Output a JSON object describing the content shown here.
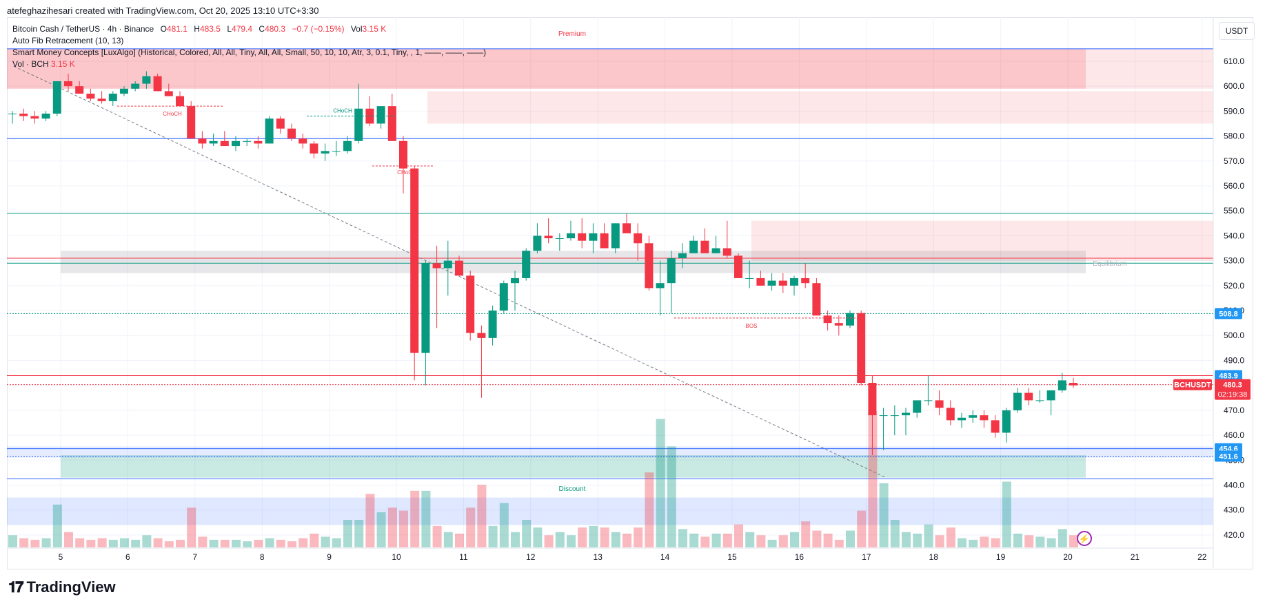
{
  "header": {
    "attribution": "atefeghazihesari created with TradingView.com, Oct 20, 2025 13:10 UTC+3:30"
  },
  "legend": {
    "symbol": "Bitcoin Cash / TetherUS · 4h · Binance",
    "o_label": "O",
    "o_value": "481.1",
    "h_label": "H",
    "h_value": "483.5",
    "l_label": "L",
    "l_value": "479.4",
    "c_label": "C",
    "c_value": "480.3",
    "change": "−0.7 (−0.15%)",
    "vol_label": "Vol",
    "vol_value": "3.15 K",
    "indicator1": "Auto Fib Retracement (10, 13)",
    "indicator2": "Smart Money Concepts [LuxAlgo] (Historical, Colored, All, All, Tiny, All, All, Small, 50, 10, 10, Atr, 3, 0.1, Tiny, , 1, ——, ——, ——)",
    "indicator3_label": "Vol · BCH",
    "indicator3_value": "3.15 K"
  },
  "currency_button": "USDT",
  "price_labels": {
    "fib_top": "508.8",
    "high_line": "483.9",
    "ticker": "BCHUSDT",
    "last_price": "480.3",
    "countdown": "02:19:38",
    "low1": "454.6",
    "low2": "451.6"
  },
  "zone_labels": {
    "premium": "Premium",
    "discount": "Discount",
    "equilibrium": "Equilibrium",
    "choch1": "CHoCH",
    "choch2": "CHoCH",
    "choch3": "CHoCH",
    "bos": "BOS"
  },
  "footer": {
    "brand": "TradingView"
  },
  "colors": {
    "up": "#089981",
    "down": "#f23645",
    "blue": "#2962ff",
    "accent_label": "#2196f3"
  },
  "chart_data": {
    "type": "candlestick",
    "timeframe": "4h",
    "ylim": [
      415,
      618
    ],
    "y_ticks": [
      420,
      430,
      440,
      450,
      460,
      470,
      480,
      490,
      500,
      510,
      520,
      530,
      540,
      550,
      560,
      570,
      580,
      590,
      600,
      610
    ],
    "y_tick_labels": [
      "420.0",
      "430.0",
      "440.0",
      "450.0",
      "460.0",
      "470.0",
      "480.0",
      "490.0",
      "500.0",
      "510.0",
      "520.0",
      "530.0",
      "540.0",
      "550.0",
      "560.0",
      "570.0",
      "580.0",
      "590.0",
      "600.0",
      "610.0"
    ],
    "x_tick_labels": [
      "5",
      "6",
      "7",
      "8",
      "9",
      "10",
      "11",
      "12",
      "13",
      "14",
      "15",
      "16",
      "17",
      "18",
      "19",
      "20",
      "21",
      "22"
    ],
    "candles": [
      [
        589,
        590,
        585,
        589,
        0.8
      ],
      [
        589,
        591,
        586,
        588,
        0.6
      ],
      [
        588,
        590,
        585,
        587,
        0.5
      ],
      [
        587,
        590,
        586,
        589,
        0.6
      ],
      [
        589,
        602,
        588,
        602,
        2.8
      ],
      [
        602,
        605,
        598,
        600,
        1.0
      ],
      [
        600,
        602,
        597,
        597,
        0.6
      ],
      [
        597,
        599,
        594,
        595,
        0.5
      ],
      [
        595,
        598,
        593,
        594,
        0.6
      ],
      [
        594,
        598,
        592,
        597,
        0.5
      ],
      [
        597,
        600,
        596,
        599,
        0.6
      ],
      [
        599,
        602,
        598,
        601,
        0.5
      ],
      [
        601,
        606,
        599,
        604,
        0.8
      ],
      [
        604,
        605,
        598,
        598,
        0.6
      ],
      [
        598,
        601,
        596,
        596,
        0.4
      ],
      [
        596,
        598,
        592,
        592,
        0.5
      ],
      [
        592,
        594,
        580,
        579,
        2.6
      ],
      [
        579,
        582,
        575,
        577,
        0.7
      ],
      [
        577,
        581,
        576,
        578,
        0.5
      ],
      [
        578,
        582,
        576,
        576,
        0.5
      ],
      [
        576,
        580,
        574,
        578,
        0.5
      ],
      [
        578,
        579,
        576,
        578,
        0.4
      ],
      [
        578,
        580,
        575,
        577,
        0.5
      ],
      [
        577,
        588,
        577,
        587,
        0.6
      ],
      [
        587,
        588,
        581,
        583,
        0.5
      ],
      [
        583,
        585,
        578,
        579,
        0.4
      ],
      [
        579,
        581,
        575,
        577,
        0.6
      ],
      [
        577,
        578,
        571,
        573,
        0.9
      ],
      [
        573,
        577,
        570,
        574,
        0.7
      ],
      [
        574,
        578,
        572,
        574,
        0.6
      ],
      [
        574,
        580,
        573,
        578,
        1.8
      ],
      [
        578,
        601,
        577,
        591,
        1.8
      ],
      [
        591,
        596,
        584,
        585,
        3.5
      ],
      [
        585,
        592,
        583,
        592,
        2.3
      ],
      [
        592,
        597,
        579,
        578,
        2.6
      ],
      [
        578,
        580,
        557,
        567,
        2.4
      ],
      [
        567,
        568,
        482,
        493,
        3.7
      ],
      [
        493,
        530,
        480,
        529,
        3.7
      ],
      [
        529,
        536,
        503,
        527,
        1.4
      ],
      [
        527,
        538,
        516,
        530,
        1.0
      ],
      [
        530,
        532,
        525,
        524,
        0.9
      ],
      [
        524,
        526,
        498,
        501,
        2.6
      ],
      [
        501,
        504,
        475,
        499,
        4.1
      ],
      [
        499,
        512,
        496,
        510,
        1.4
      ],
      [
        510,
        522,
        509,
        521,
        2.9
      ],
      [
        521,
        526,
        510,
        523,
        1.0
      ],
      [
        523,
        535,
        522,
        534,
        1.8
      ],
      [
        534,
        545,
        533,
        540,
        1.3
      ],
      [
        540,
        547,
        537,
        539,
        0.8
      ],
      [
        539,
        541,
        534,
        539,
        1.0
      ],
      [
        539,
        546,
        538,
        541,
        0.8
      ],
      [
        541,
        547,
        535,
        538,
        1.3
      ],
      [
        538,
        545,
        533,
        541,
        1.4
      ],
      [
        541,
        545,
        537,
        535,
        1.3
      ],
      [
        535,
        545,
        533,
        545,
        1.0
      ],
      [
        545,
        549,
        542,
        541,
        0.9
      ],
      [
        541,
        545,
        530,
        537,
        1.3
      ],
      [
        537,
        540,
        518,
        519,
        4.9
      ],
      [
        519,
        530,
        508,
        521,
        8.4
      ],
      [
        521,
        534,
        509,
        531,
        6.6
      ],
      [
        531,
        537,
        527,
        533,
        1.2
      ],
      [
        533,
        540,
        533,
        538,
        0.9
      ],
      [
        538,
        543,
        534,
        533,
        0.7
      ],
      [
        533,
        540,
        533,
        535,
        0.9
      ],
      [
        535,
        546,
        531,
        532,
        0.9
      ],
      [
        532,
        533,
        525,
        523,
        1.5
      ],
      [
        523,
        530,
        519,
        523,
        1.0
      ],
      [
        523,
        526,
        520,
        520,
        0.8
      ],
      [
        520,
        525,
        518,
        522,
        0.5
      ],
      [
        522,
        525,
        517,
        520,
        0.8
      ],
      [
        520,
        524,
        516,
        523,
        1.0
      ],
      [
        523,
        529,
        519,
        521,
        1.7
      ],
      [
        521,
        523,
        510,
        508,
        1.1
      ],
      [
        508,
        510,
        502,
        505,
        0.9
      ],
      [
        505,
        508,
        500,
        504,
        0.5
      ],
      [
        504,
        510,
        503,
        509,
        1.1
      ],
      [
        509,
        510,
        480,
        481,
        2.4
      ],
      [
        481,
        484,
        452,
        468,
        8.9
      ],
      [
        468,
        471,
        454,
        468,
        4.2
      ],
      [
        468,
        472,
        460,
        468,
        1.8
      ],
      [
        468,
        471,
        460,
        469,
        1.0
      ],
      [
        469,
        472,
        467,
        474,
        0.9
      ],
      [
        474,
        484,
        472,
        474,
        1.5
      ],
      [
        474,
        478,
        468,
        471,
        0.8
      ],
      [
        471,
        474,
        464,
        466,
        1.3
      ],
      [
        466,
        469,
        463,
        467,
        0.6
      ],
      [
        467,
        470,
        465,
        468,
        0.5
      ],
      [
        468,
        470,
        463,
        466,
        0.7
      ],
      [
        466,
        468,
        459,
        461,
        0.6
      ],
      [
        461,
        471,
        457,
        470,
        4.3
      ],
      [
        470,
        479,
        469,
        477,
        0.9
      ],
      [
        477,
        479,
        472,
        474,
        0.8
      ],
      [
        474,
        478,
        473,
        474,
        0.7
      ],
      [
        474,
        476,
        468,
        478,
        0.6
      ],
      [
        478,
        485,
        477,
        482,
        1.2
      ],
      [
        481,
        483,
        479,
        480,
        0.8
      ]
    ],
    "horizontal_levels": [
      {
        "price": 615,
        "color": "#2962ff"
      },
      {
        "price": 579,
        "color": "#2962ff"
      },
      {
        "price": 549,
        "color": "#089981"
      },
      {
        "price": 531,
        "color": "#f23645"
      },
      {
        "price": 529,
        "color": "#089981"
      },
      {
        "price": 508.8,
        "color": "#089981"
      },
      {
        "price": 483.9,
        "color": "#f23645"
      },
      {
        "price": 480.3,
        "color": "#f23645"
      },
      {
        "price": 454.6,
        "color": "#2962ff"
      },
      {
        "price": 451.6,
        "color": "#2962ff"
      },
      {
        "price": 442.5,
        "color": "#2962ff"
      }
    ]
  }
}
